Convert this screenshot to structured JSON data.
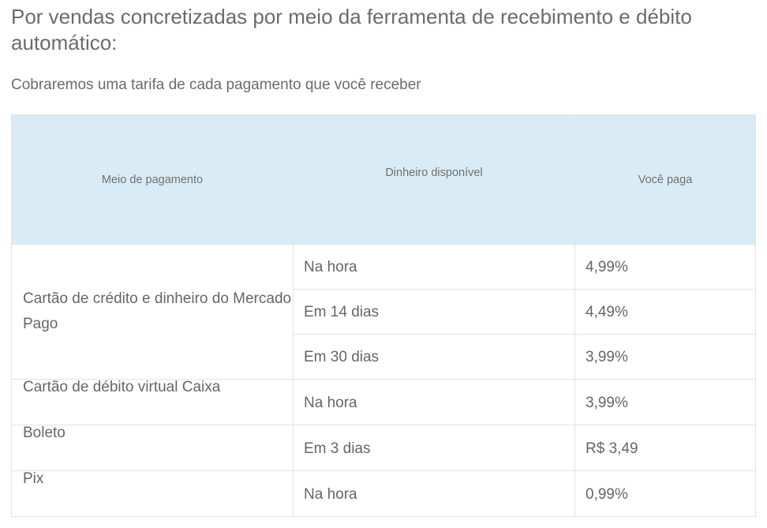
{
  "heading": "Por vendas concretizadas por meio da ferramenta de recebimento e débito automático:",
  "subheading": "Cobraremos uma tarifa de cada pagamento que você receber",
  "table": {
    "headers": {
      "method": "Meio de pagamento",
      "available": "Dinheiro disponível",
      "pay": "Você paga"
    },
    "groups": [
      {
        "method": "Cartão de crédito e dinheiro do Mercado Pago",
        "rows": [
          {
            "available": "Na hora",
            "pay": "4,99%"
          },
          {
            "available": "Em 14 dias",
            "pay": "4,49%"
          },
          {
            "available": "Em 30 dias",
            "pay": "3,99%"
          }
        ]
      },
      {
        "method": "Cartão de débito virtual Caixa",
        "rows": [
          {
            "available": "Na hora",
            "pay": "3,99%"
          }
        ]
      },
      {
        "method": "Boleto",
        "rows": [
          {
            "available": "Em 3 dias",
            "pay": "R$ 3,49"
          }
        ]
      },
      {
        "method": "Pix",
        "rows": [
          {
            "available": "Na hora",
            "pay": "0,99%"
          }
        ]
      }
    ]
  }
}
